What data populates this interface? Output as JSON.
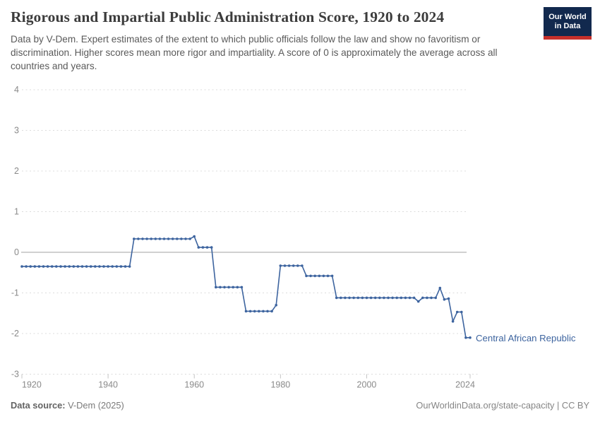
{
  "header": {
    "title": "Rigorous and Impartial Public Administration Score, 1920 to 2024",
    "subtitle": "Data by V-Dem. Expert estimates of the extent to which public officials follow the law and show no favoritism or discrimination. Higher scores mean more rigor and impartiality. A score of 0 is approximately the average across all countries and years."
  },
  "logo": {
    "line1": "Our World",
    "line2": "in Data",
    "bg_color": "#12294e",
    "bar_color": "#c7302b"
  },
  "chart_data": {
    "type": "line",
    "title": "Rigorous and Impartial Public Administration Score, 1920 to 2024",
    "entity_label": "Central African Republic",
    "colors": {
      "line": "#3d649f",
      "grid": "#dcdcdc",
      "zero_line": "#b3b3b3",
      "axis_text": "#8a8a8a",
      "tick": "#c4c4c4"
    },
    "xlim": [
      1920,
      2024
    ],
    "ylim": [
      -3,
      4
    ],
    "yticks": [
      4,
      3,
      2,
      1,
      0,
      -1,
      -2,
      -3
    ],
    "xticks": [
      1920,
      1940,
      1960,
      1980,
      2000,
      2024
    ],
    "grid": "horizontal-dashed, zero line solid",
    "legend_position": "end-of-line label",
    "points": [
      [
        1920,
        -0.35
      ],
      [
        1921,
        -0.35
      ],
      [
        1922,
        -0.35
      ],
      [
        1923,
        -0.35
      ],
      [
        1924,
        -0.35
      ],
      [
        1925,
        -0.35
      ],
      [
        1926,
        -0.35
      ],
      [
        1927,
        -0.35
      ],
      [
        1928,
        -0.35
      ],
      [
        1929,
        -0.35
      ],
      [
        1930,
        -0.35
      ],
      [
        1931,
        -0.35
      ],
      [
        1932,
        -0.35
      ],
      [
        1933,
        -0.35
      ],
      [
        1934,
        -0.35
      ],
      [
        1935,
        -0.35
      ],
      [
        1936,
        -0.35
      ],
      [
        1937,
        -0.35
      ],
      [
        1938,
        -0.35
      ],
      [
        1939,
        -0.35
      ],
      [
        1940,
        -0.35
      ],
      [
        1941,
        -0.35
      ],
      [
        1942,
        -0.35
      ],
      [
        1943,
        -0.35
      ],
      [
        1944,
        -0.35
      ],
      [
        1945,
        -0.35
      ],
      [
        1946,
        0.33
      ],
      [
        1947,
        0.33
      ],
      [
        1948,
        0.33
      ],
      [
        1949,
        0.33
      ],
      [
        1950,
        0.33
      ],
      [
        1951,
        0.33
      ],
      [
        1952,
        0.33
      ],
      [
        1953,
        0.33
      ],
      [
        1954,
        0.33
      ],
      [
        1955,
        0.33
      ],
      [
        1956,
        0.33
      ],
      [
        1957,
        0.33
      ],
      [
        1958,
        0.33
      ],
      [
        1959,
        0.33
      ],
      [
        1960,
        0.39
      ],
      [
        1961,
        0.12
      ],
      [
        1962,
        0.12
      ],
      [
        1963,
        0.12
      ],
      [
        1964,
        0.12
      ],
      [
        1965,
        -0.86
      ],
      [
        1966,
        -0.86
      ],
      [
        1967,
        -0.86
      ],
      [
        1968,
        -0.86
      ],
      [
        1969,
        -0.86
      ],
      [
        1970,
        -0.86
      ],
      [
        1971,
        -0.86
      ],
      [
        1972,
        -1.45
      ],
      [
        1973,
        -1.45
      ],
      [
        1974,
        -1.45
      ],
      [
        1975,
        -1.45
      ],
      [
        1976,
        -1.45
      ],
      [
        1977,
        -1.45
      ],
      [
        1978,
        -1.45
      ],
      [
        1979,
        -1.3
      ],
      [
        1980,
        -0.33
      ],
      [
        1981,
        -0.33
      ],
      [
        1982,
        -0.33
      ],
      [
        1983,
        -0.33
      ],
      [
        1984,
        -0.33
      ],
      [
        1985,
        -0.33
      ],
      [
        1986,
        -0.58
      ],
      [
        1987,
        -0.58
      ],
      [
        1988,
        -0.58
      ],
      [
        1989,
        -0.58
      ],
      [
        1990,
        -0.58
      ],
      [
        1991,
        -0.58
      ],
      [
        1992,
        -0.58
      ],
      [
        1993,
        -1.12
      ],
      [
        1994,
        -1.12
      ],
      [
        1995,
        -1.12
      ],
      [
        1996,
        -1.12
      ],
      [
        1997,
        -1.12
      ],
      [
        1998,
        -1.12
      ],
      [
        1999,
        -1.12
      ],
      [
        2000,
        -1.12
      ],
      [
        2001,
        -1.12
      ],
      [
        2002,
        -1.12
      ],
      [
        2003,
        -1.12
      ],
      [
        2004,
        -1.12
      ],
      [
        2005,
        -1.12
      ],
      [
        2006,
        -1.12
      ],
      [
        2007,
        -1.12
      ],
      [
        2008,
        -1.12
      ],
      [
        2009,
        -1.12
      ],
      [
        2010,
        -1.12
      ],
      [
        2011,
        -1.12
      ],
      [
        2012,
        -1.21
      ],
      [
        2013,
        -1.12
      ],
      [
        2014,
        -1.12
      ],
      [
        2015,
        -1.12
      ],
      [
        2016,
        -1.12
      ],
      [
        2017,
        -0.88
      ],
      [
        2018,
        -1.16
      ],
      [
        2019,
        -1.14
      ],
      [
        2020,
        -1.7
      ],
      [
        2021,
        -1.47
      ],
      [
        2022,
        -1.47
      ],
      [
        2023,
        -2.1
      ],
      [
        2024,
        -2.1
      ]
    ]
  },
  "footer": {
    "source_label": "Data source:",
    "source_value": " V-Dem (2025)",
    "citation": "OurWorldinData.org/state-capacity | CC BY"
  }
}
